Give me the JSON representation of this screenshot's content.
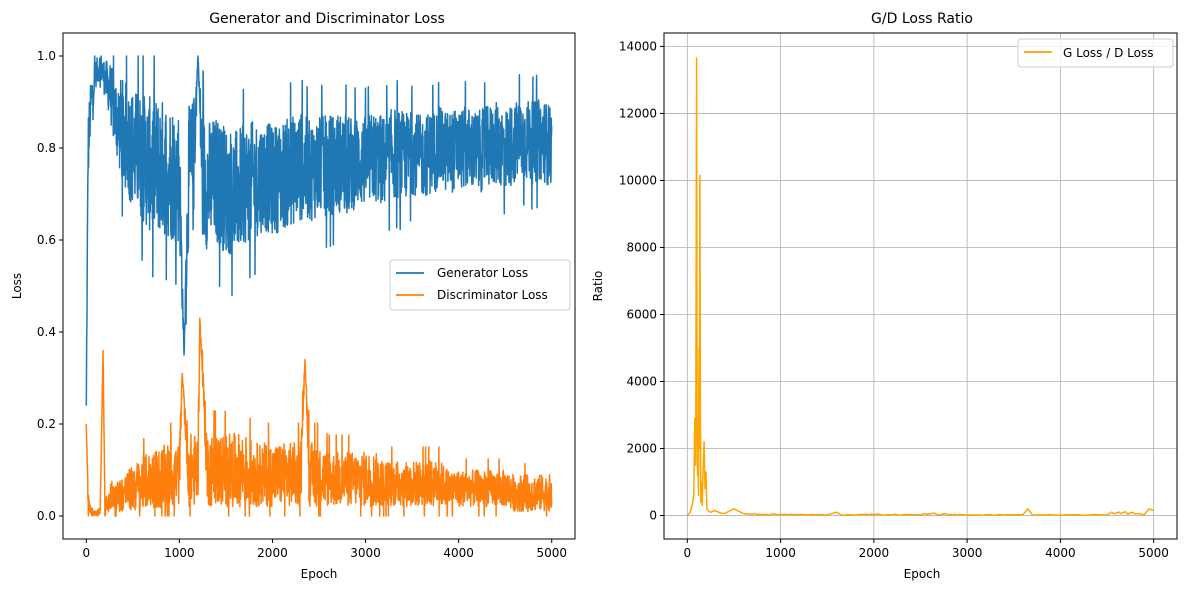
{
  "figure": {
    "background": "#ffffff"
  },
  "chart_data": [
    {
      "type": "line",
      "title": "Generator and Discriminator Loss",
      "xlabel": "Epoch",
      "ylabel": "Loss",
      "xlim": [
        -250,
        5250
      ],
      "ylim": [
        -0.05,
        1.05
      ],
      "xticks": [
        0,
        1000,
        2000,
        3000,
        4000,
        5000
      ],
      "xtick_labels": [
        "0",
        "1000",
        "2000",
        "3000",
        "4000",
        "5000"
      ],
      "yticks": [
        0.0,
        0.2,
        0.4,
        0.6,
        0.8,
        1.0
      ],
      "ytick_labels": [
        "0.0",
        "0.2",
        "0.4",
        "0.6",
        "0.8",
        "1.0"
      ],
      "grid": false,
      "legend": "center-right",
      "series": [
        {
          "name": "Generator Loss",
          "color": "#1f77b4",
          "x": [
            0,
            20,
            50,
            100,
            150,
            200,
            250,
            300,
            400,
            500,
            600,
            700,
            800,
            900,
            1000,
            1050,
            1100,
            1150,
            1200,
            1250,
            1300,
            1400,
            1500,
            1600,
            1700,
            1800,
            1900,
            2000,
            2100,
            2200,
            2300,
            2400,
            2500,
            2600,
            2700,
            2800,
            2900,
            3000,
            3100,
            3200,
            3300,
            3400,
            3500,
            3600,
            3700,
            3800,
            3900,
            4000,
            4100,
            4200,
            4300,
            4400,
            4500,
            4600,
            4700,
            4800,
            4900,
            5000
          ],
          "y": [
            0.24,
            0.8,
            0.9,
            0.96,
            0.98,
            0.95,
            0.93,
            0.88,
            0.83,
            0.8,
            0.78,
            0.76,
            0.76,
            0.75,
            0.74,
            0.35,
            0.74,
            0.76,
            1.0,
            0.73,
            0.72,
            0.73,
            0.71,
            0.7,
            0.72,
            0.73,
            0.74,
            0.73,
            0.74,
            0.75,
            0.76,
            0.75,
            0.76,
            0.76,
            0.77,
            0.76,
            0.77,
            0.77,
            0.78,
            0.77,
            0.79,
            0.78,
            0.79,
            0.78,
            0.79,
            0.8,
            0.79,
            0.8,
            0.8,
            0.79,
            0.8,
            0.81,
            0.8,
            0.81,
            0.82,
            0.81,
            0.82,
            0.8
          ],
          "band": [
            0.0,
            0.08,
            0.05,
            0.03,
            0.03,
            0.04,
            0.06,
            0.08,
            0.12,
            0.13,
            0.14,
            0.15,
            0.15,
            0.15,
            0.15,
            0.0,
            0.15,
            0.15,
            0.0,
            0.15,
            0.14,
            0.14,
            0.14,
            0.14,
            0.13,
            0.13,
            0.12,
            0.12,
            0.12,
            0.12,
            0.12,
            0.11,
            0.11,
            0.11,
            0.11,
            0.11,
            0.1,
            0.1,
            0.1,
            0.1,
            0.1,
            0.1,
            0.09,
            0.09,
            0.09,
            0.09,
            0.09,
            0.09,
            0.09,
            0.09,
            0.09,
            0.09,
            0.09,
            0.09,
            0.09,
            0.09,
            0.09,
            0.09
          ]
        },
        {
          "name": "Discriminator Loss",
          "color": "#ff7f0e",
          "x": [
            0,
            20,
            50,
            100,
            150,
            180,
            200,
            250,
            300,
            400,
            500,
            600,
            700,
            800,
            900,
            1000,
            1030,
            1100,
            1200,
            1220,
            1300,
            1400,
            1500,
            1600,
            1700,
            1800,
            1900,
            2000,
            2100,
            2200,
            2300,
            2350,
            2400,
            2500,
            2600,
            2700,
            2800,
            2900,
            3000,
            3100,
            3200,
            3300,
            3400,
            3500,
            3600,
            3700,
            3800,
            3900,
            4000,
            4100,
            4200,
            4300,
            4400,
            4500,
            4600,
            4700,
            4800,
            4900,
            5000
          ],
          "y": [
            0.2,
            0.03,
            0.01,
            0.005,
            0.01,
            0.36,
            0.02,
            0.03,
            0.04,
            0.05,
            0.06,
            0.07,
            0.08,
            0.08,
            0.09,
            0.09,
            0.31,
            0.1,
            0.1,
            0.43,
            0.1,
            0.1,
            0.1,
            0.1,
            0.1,
            0.09,
            0.09,
            0.09,
            0.09,
            0.09,
            0.09,
            0.34,
            0.09,
            0.09,
            0.08,
            0.08,
            0.08,
            0.08,
            0.08,
            0.08,
            0.07,
            0.07,
            0.07,
            0.07,
            0.07,
            0.07,
            0.07,
            0.06,
            0.06,
            0.06,
            0.06,
            0.06,
            0.06,
            0.06,
            0.05,
            0.05,
            0.05,
            0.05,
            0.05
          ],
          "band": [
            0.0,
            0.02,
            0.01,
            0.005,
            0.01,
            0.0,
            0.02,
            0.02,
            0.03,
            0.04,
            0.05,
            0.06,
            0.06,
            0.07,
            0.07,
            0.07,
            0.0,
            0.08,
            0.08,
            0.0,
            0.08,
            0.08,
            0.08,
            0.08,
            0.08,
            0.07,
            0.07,
            0.07,
            0.07,
            0.07,
            0.07,
            0.0,
            0.07,
            0.07,
            0.06,
            0.06,
            0.06,
            0.06,
            0.06,
            0.06,
            0.05,
            0.05,
            0.05,
            0.05,
            0.05,
            0.05,
            0.05,
            0.04,
            0.04,
            0.04,
            0.04,
            0.04,
            0.04,
            0.04,
            0.04,
            0.04,
            0.04,
            0.04,
            0.04
          ]
        }
      ]
    },
    {
      "type": "line",
      "title": "G/D Loss Ratio",
      "xlabel": "Epoch",
      "ylabel": "Ratio",
      "xlim": [
        -250,
        5250
      ],
      "ylim": [
        -700,
        14400
      ],
      "xticks": [
        0,
        1000,
        2000,
        3000,
        4000,
        5000
      ],
      "xtick_labels": [
        "0",
        "1000",
        "2000",
        "3000",
        "4000",
        "5000"
      ],
      "yticks": [
        0,
        2000,
        4000,
        6000,
        8000,
        10000,
        12000,
        14000
      ],
      "ytick_labels": [
        "0",
        "2000",
        "4000",
        "6000",
        "8000",
        "10000",
        "12000",
        "14000"
      ],
      "grid": true,
      "legend": "top-right",
      "series": [
        {
          "name": "G Loss / D Loss",
          "color": "#ffa500",
          "x": [
            0,
            30,
            50,
            70,
            80,
            90,
            100,
            105,
            110,
            115,
            120,
            125,
            130,
            135,
            140,
            145,
            150,
            160,
            170,
            180,
            190,
            200,
            210,
            220,
            250,
            300,
            350,
            400,
            500,
            600,
            700,
            1000,
            1500,
            1600,
            1650,
            2000,
            2500,
            2550,
            3000,
            3500,
            3600,
            3650,
            3700,
            4000,
            4500,
            4550,
            4900,
            4950,
            5000
          ],
          "y": [
            0,
            100,
            300,
            600,
            2900,
            1500,
            13650,
            3000,
            1200,
            2200,
            600,
            5000,
            2000,
            10150,
            3500,
            400,
            1000,
            300,
            1500,
            2200,
            800,
            1300,
            200,
            150,
            100,
            150,
            80,
            60,
            200,
            60,
            40,
            30,
            20,
            100,
            20,
            30,
            20,
            60,
            15,
            20,
            30,
            200,
            20,
            15,
            20,
            100,
            30,
            200,
            150
          ]
        }
      ]
    }
  ]
}
